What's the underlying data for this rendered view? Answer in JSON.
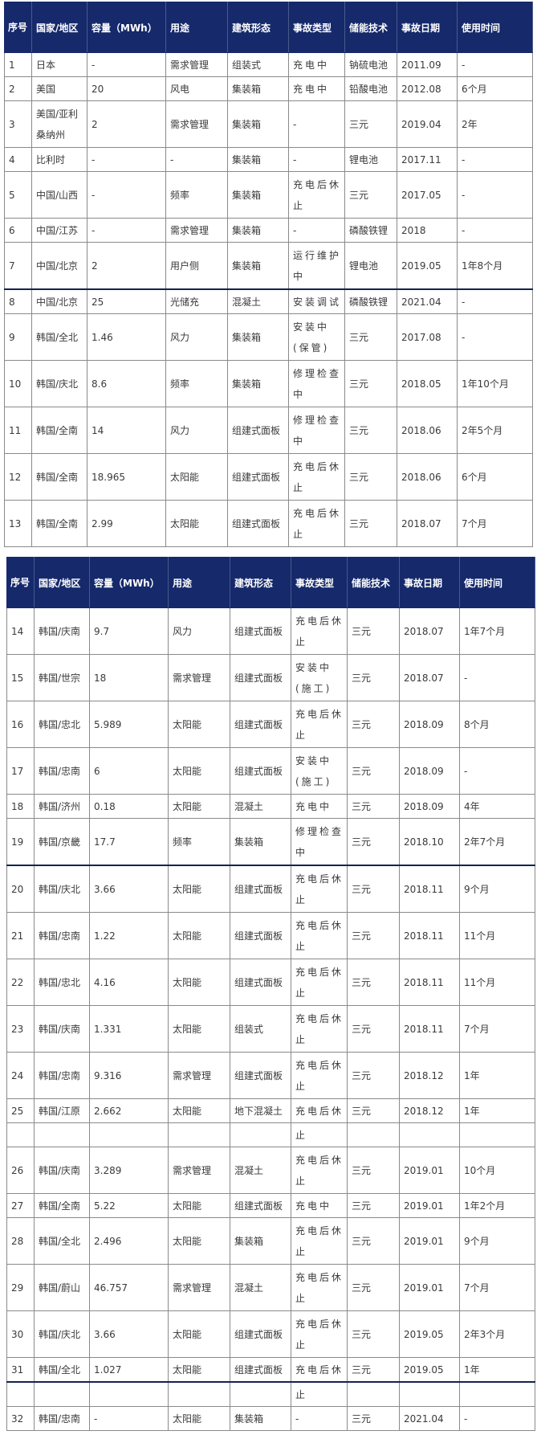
{
  "colors": {
    "header_bg": "#15296b",
    "header_text": "#ffffff",
    "border": "#8a8a8a"
  },
  "headers": [
    "序号",
    "国家/地区",
    "容量（MWh）",
    "用途",
    "建筑形态",
    "事故类型",
    "储能技术",
    "事故日期",
    "使用时间"
  ],
  "table1": [
    [
      "1",
      "日本",
      "-",
      "需求管理",
      "组装式",
      "充电中",
      "钠硫电池",
      "2011.09",
      "-"
    ],
    [
      "2",
      "美国",
      "20",
      "风电",
      "集装箱",
      "充电中",
      "铅酸电池",
      "2012.08",
      "6个月"
    ],
    [
      "3",
      "美国/亚利桑纳州",
      "2",
      "需求管理",
      "集装箱",
      "-",
      "三元",
      "2019.04",
      "2年"
    ],
    [
      "4",
      "比利时",
      "-",
      "-",
      "集装箱",
      "-",
      "锂电池",
      "2017.11",
      "-"
    ],
    [
      "5",
      "中国/山西",
      "-",
      "频率",
      "集装箱",
      "充电后休止",
      "三元",
      "2017.05",
      "-"
    ],
    [
      "6",
      "中国/江苏",
      "-",
      "需求管理",
      "集装箱",
      "-",
      "磷酸铁锂",
      "2018",
      "-"
    ],
    [
      "7",
      "中国/北京",
      "2",
      "用户侧",
      "集装箱",
      "运行维护中",
      "锂电池",
      "2019.05",
      "1年8个月"
    ],
    [
      "8",
      "中国/北京",
      "25",
      "光储充",
      "混凝土",
      "安装调试",
      "磷酸铁锂",
      "2021.04",
      "-"
    ],
    [
      "9",
      "韩国/全北",
      "1.46",
      "风力",
      "集装箱",
      "安装中(保管)",
      "三元",
      "2017.08",
      "-"
    ],
    [
      "10",
      "韩国/庆北",
      "8.6",
      "频率",
      "集装箱",
      "修理检查中",
      "三元",
      "2018.05",
      "1年10个月"
    ],
    [
      "11",
      "韩国/全南",
      "14",
      "风力",
      "组建式面板",
      "修理检查中",
      "三元",
      "2018.06",
      "2年5个月"
    ],
    [
      "12",
      "韩国/全南",
      "18.965",
      "太阳能",
      "组建式面板",
      "充电后休止",
      "三元",
      "2018.06",
      "6个月"
    ],
    [
      "13",
      "韩国/全南",
      "2.99",
      "太阳能",
      "组建式面板",
      "充电后休止",
      "三元",
      "2018.07",
      "7个月"
    ]
  ],
  "table2": [
    [
      "14",
      "韩国/庆南",
      "9.7",
      "风力",
      "组建式面板",
      "充电后休止",
      "三元",
      "2018.07",
      "1年7个月"
    ],
    [
      "15",
      "韩国/世宗",
      "18",
      "需求管理",
      "组建式面板",
      "安装中(施工)",
      "三元",
      "2018.07",
      "-"
    ],
    [
      "16",
      "韩国/忠北",
      "5.989",
      "太阳能",
      "组建式面板",
      "充电后休止",
      "三元",
      "2018.09",
      "8个月"
    ],
    [
      "17",
      "韩国/忠南",
      "6",
      "太阳能",
      "组建式面板",
      "安装中(施工)",
      "三元",
      "2018.09",
      "-"
    ],
    [
      "18",
      "韩国/济州",
      "0.18",
      "太阳能",
      "混凝土",
      "充电中",
      "三元",
      "2018.09",
      "4年"
    ],
    [
      "19",
      "韩国/京畿",
      "17.7",
      "频率",
      "集装箱",
      "修理检查中",
      "三元",
      "2018.10",
      "2年7个月"
    ],
    [
      "20",
      "韩国/庆北",
      "3.66",
      "太阳能",
      "组建式面板",
      "充电后休止",
      "三元",
      "2018.11",
      "9个月"
    ],
    [
      "21",
      "韩国/忠南",
      "1.22",
      "太阳能",
      "组建式面板",
      "充电后休止",
      "三元",
      "2018.11",
      "11个月"
    ],
    [
      "22",
      "韩国/忠北",
      "4.16",
      "太阳能",
      "组建式面板",
      "充电后休止",
      "三元",
      "2018.11",
      "11个月"
    ],
    [
      "23",
      "韩国/庆南",
      "1.331",
      "太阳能",
      "组装式",
      "充电后休止",
      "三元",
      "2018.11",
      "7个月"
    ],
    [
      "24",
      "韩国/忠南",
      "9.316",
      "需求管理",
      "组建式面板",
      "充电后休止",
      "三元",
      "2018.12",
      "1年"
    ],
    [
      "25",
      "韩国/江原",
      "2.662",
      "太阳能",
      "地下混凝土",
      "充电后休",
      "三元",
      "2018.12",
      "1年"
    ],
    [
      "",
      "",
      "",
      "",
      "",
      "止",
      "",
      "",
      ""
    ],
    [
      "26",
      "韩国/庆南",
      "3.289",
      "需求管理",
      "混凝土",
      "充电后休止",
      "三元",
      "2019.01",
      "10个月"
    ],
    [
      "27",
      "韩国/全南",
      "5.22",
      "太阳能",
      "组建式面板",
      "充电中",
      "三元",
      "2019.01",
      "1年2个月"
    ],
    [
      "28",
      "韩国/全北",
      "2.496",
      "太阳能",
      "集装箱",
      "充电后休止",
      "三元",
      "2019.01",
      "9个月"
    ],
    [
      "29",
      "韩国/蔚山",
      "46.757",
      "需求管理",
      "混凝土",
      "充电后休止",
      "三元",
      "2019.01",
      "7个月"
    ],
    [
      "30",
      "韩国/庆北",
      "3.66",
      "太阳能",
      "组建式面板",
      "充电后休止",
      "三元",
      "2019.05",
      "2年3个月"
    ],
    [
      "31",
      "韩国/全北",
      "1.027",
      "太阳能",
      "组建式面板",
      "充电后休",
      "三元",
      "2019.05",
      "1年"
    ],
    [
      "",
      "",
      "",
      "",
      "",
      "止",
      "",
      "",
      ""
    ],
    [
      "32",
      "韩国/忠南",
      "-",
      "太阳能",
      "集装箱",
      "-",
      "三元",
      "2021.04",
      "-"
    ]
  ]
}
